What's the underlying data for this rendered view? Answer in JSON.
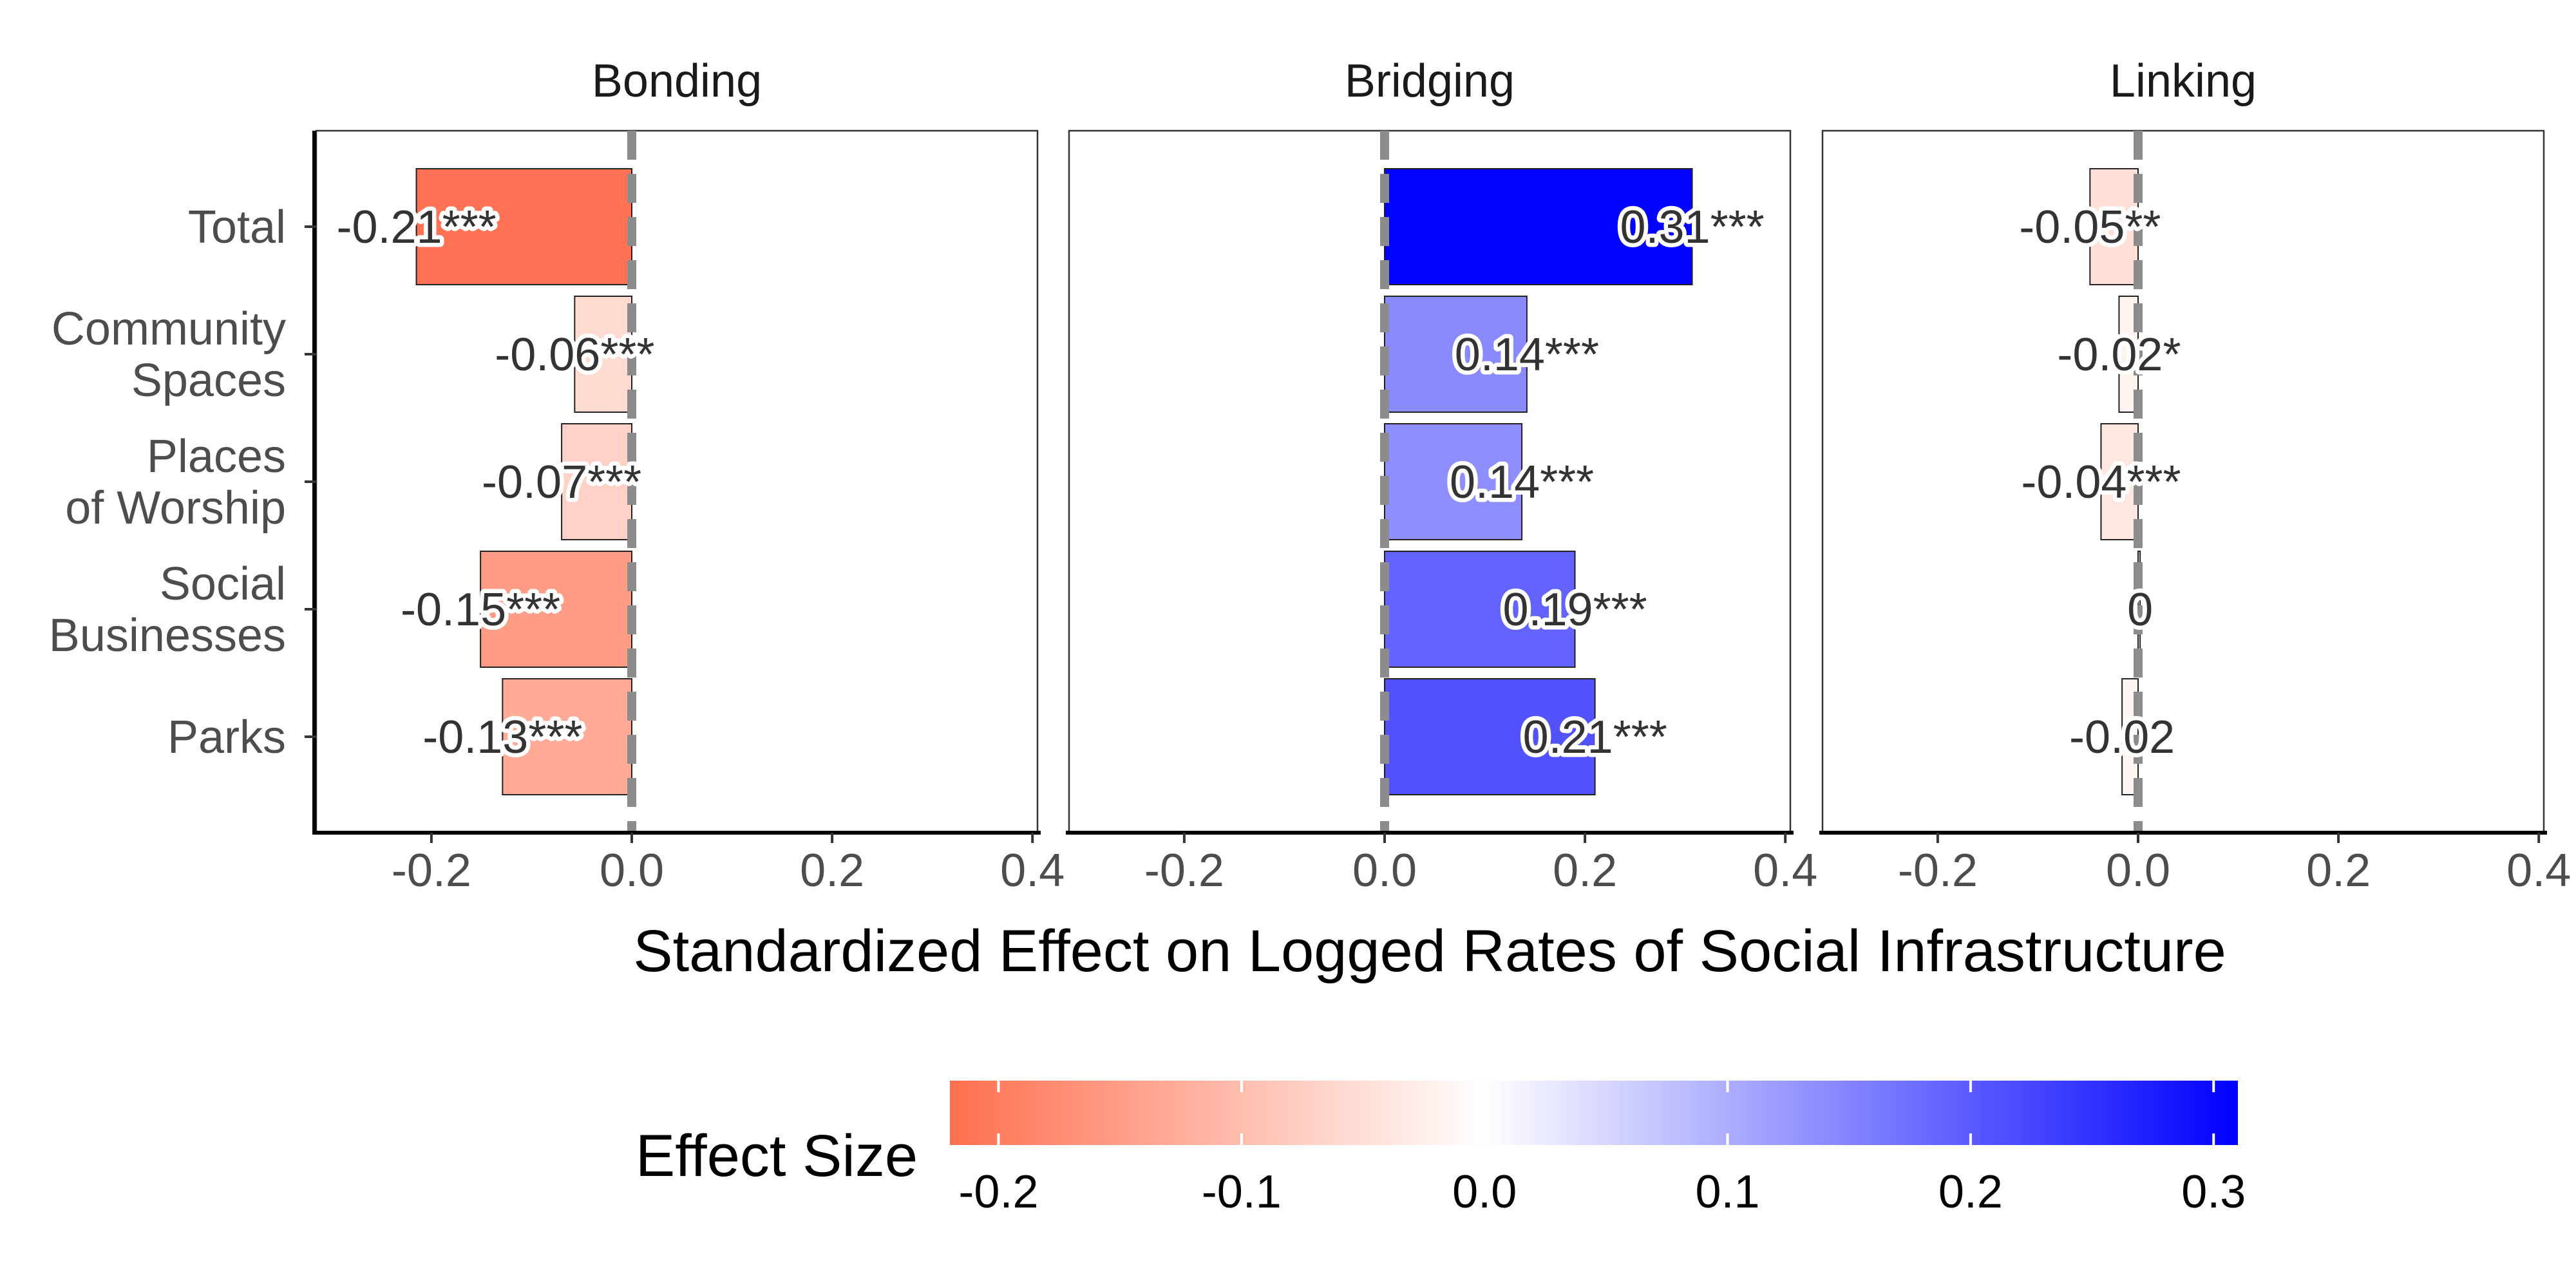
{
  "chart_data": {
    "type": "bar",
    "orientation": "horizontal",
    "facets": [
      "Bonding",
      "Bridging",
      "Linking"
    ],
    "categories": [
      "Total",
      "Community\nSpaces",
      "Places\nof Worship",
      "Social\nBusinesses",
      "Parks"
    ],
    "series": [
      {
        "facet": "Bonding",
        "values": [
          -0.215,
          -0.057,
          -0.07,
          -0.151,
          -0.129
        ],
        "labels": [
          "-0.21***",
          "-0.06***",
          "-0.07***",
          "-0.15***",
          "-0.13***"
        ]
      },
      {
        "facet": "Bridging",
        "values": [
          0.307,
          0.142,
          0.137,
          0.19,
          0.21
        ],
        "labels": [
          "0.31***",
          "0.14***",
          "0.14***",
          "0.19***",
          "0.21***"
        ]
      },
      {
        "facet": "Linking",
        "values": [
          -0.048,
          -0.019,
          -0.037,
          0.002,
          -0.016
        ],
        "labels": [
          "-0.05**",
          "-0.02*",
          "-0.04***",
          "0",
          "-0.02"
        ]
      }
    ],
    "x_ticks": [
      "-0.2",
      "0.0",
      "0.2",
      "0.4"
    ],
    "x_tick_values": [
      -0.2,
      0.0,
      0.2,
      0.4
    ],
    "xlim": [
      -0.315,
      0.405
    ],
    "xlabel": "Standardized Effect on Logged Rates of Social Infrastructure",
    "ylabel": "",
    "reference_line": 0,
    "legend": {
      "title": "Effect Size",
      "placement": "bottom",
      "range": [
        -0.22,
        0.31
      ],
      "ticks": [
        "-0.2",
        "-0.1",
        "0.0",
        "0.1",
        "0.2",
        "0.3"
      ],
      "tick_values": [
        -0.2,
        -0.1,
        0.0,
        0.1,
        0.2,
        0.3
      ],
      "low_color": "#ff6f4f",
      "mid_color": "#ffffff",
      "high_color": "#0000ff"
    },
    "grid": false
  }
}
